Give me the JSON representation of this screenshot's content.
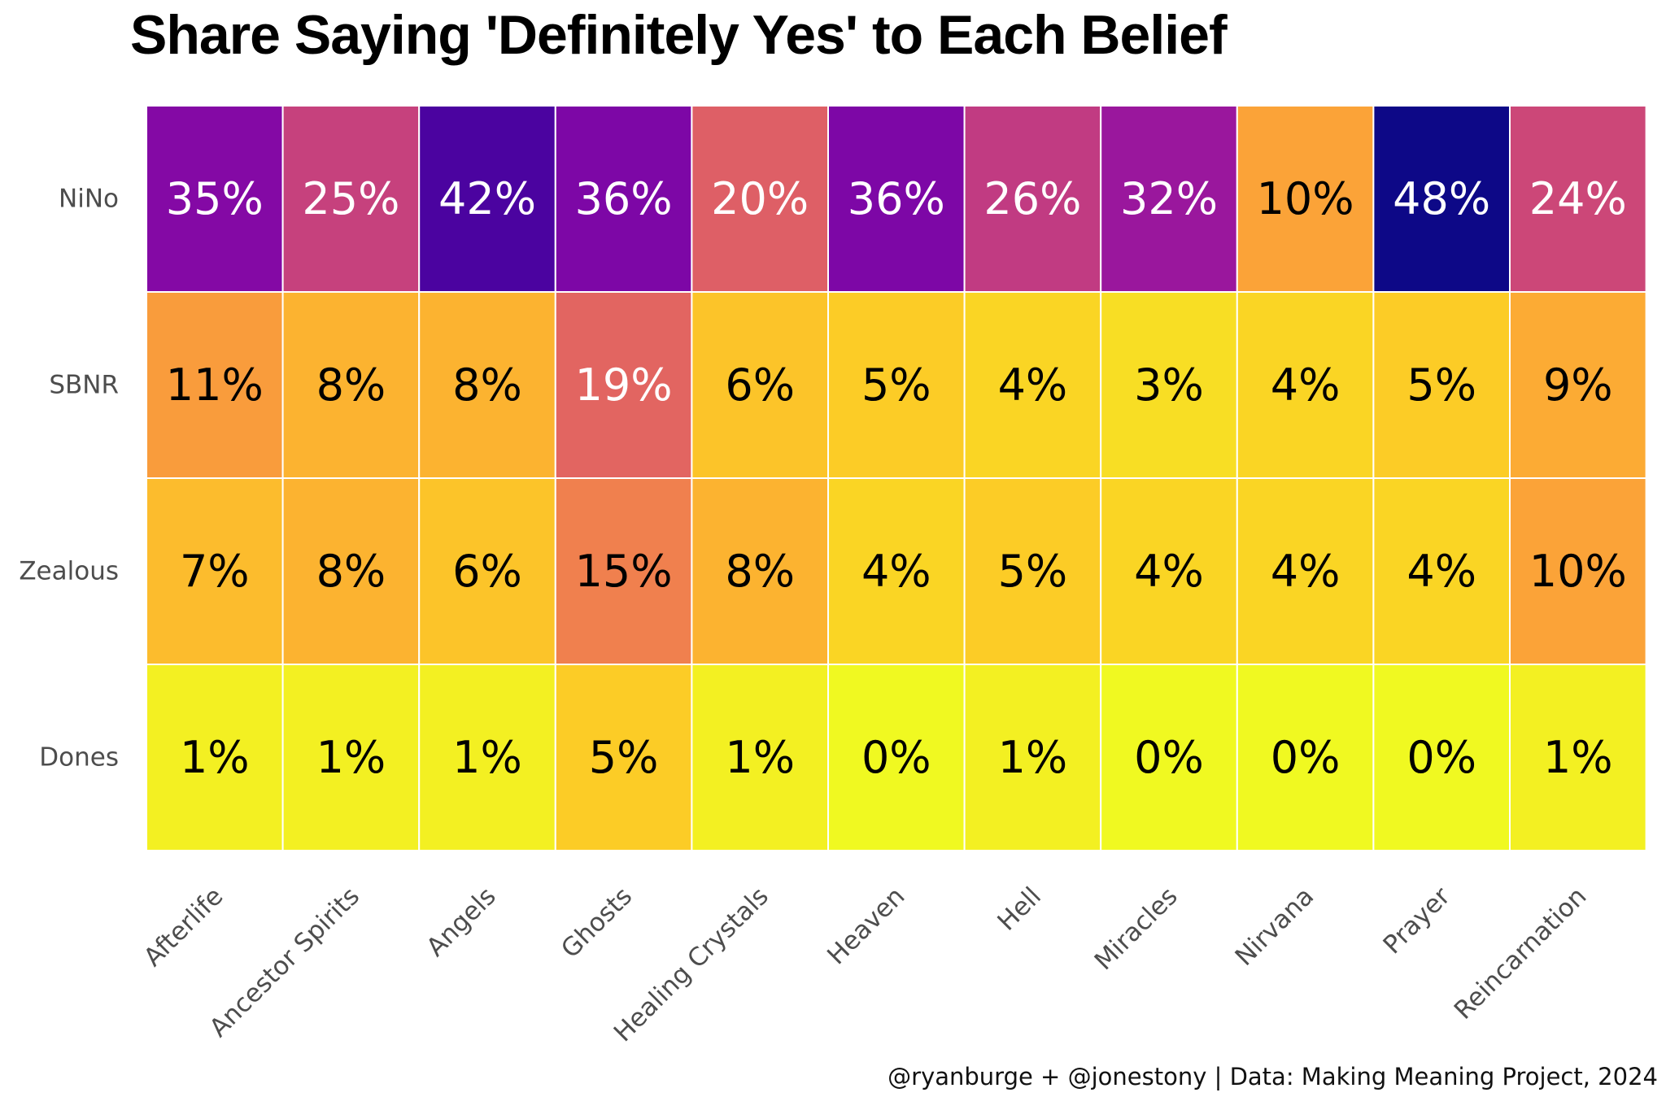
{
  "chart_data": {
    "type": "heatmap",
    "title": "Share Saying 'Definitely Yes' to Each Belief",
    "caption": "@ryanburge + @jonestony | Data: Making Meaning Project, 2024",
    "xlabel": "",
    "ylabel": "",
    "columns": [
      "Afterlife",
      "Ancestor Spirits",
      "Angels",
      "Ghosts",
      "Healing Crystals",
      "Heaven",
      "Hell",
      "Miracles",
      "Nirvana",
      "Prayer",
      "Reincarnation"
    ],
    "rows": [
      "NiNo",
      "SBNR",
      "Zealous",
      "Dones"
    ],
    "values": [
      [
        35,
        25,
        42,
        36,
        20,
        36,
        26,
        32,
        10,
        48,
        24
      ],
      [
        11,
        8,
        8,
        19,
        6,
        5,
        4,
        3,
        4,
        5,
        9
      ],
      [
        7,
        8,
        6,
        15,
        8,
        4,
        5,
        4,
        4,
        4,
        10
      ],
      [
        1,
        1,
        1,
        5,
        1,
        0,
        1,
        0,
        0,
        0,
        1
      ]
    ],
    "value_suffix": "%",
    "color_scale": "plasma",
    "value_range": [
      0,
      48
    ]
  }
}
